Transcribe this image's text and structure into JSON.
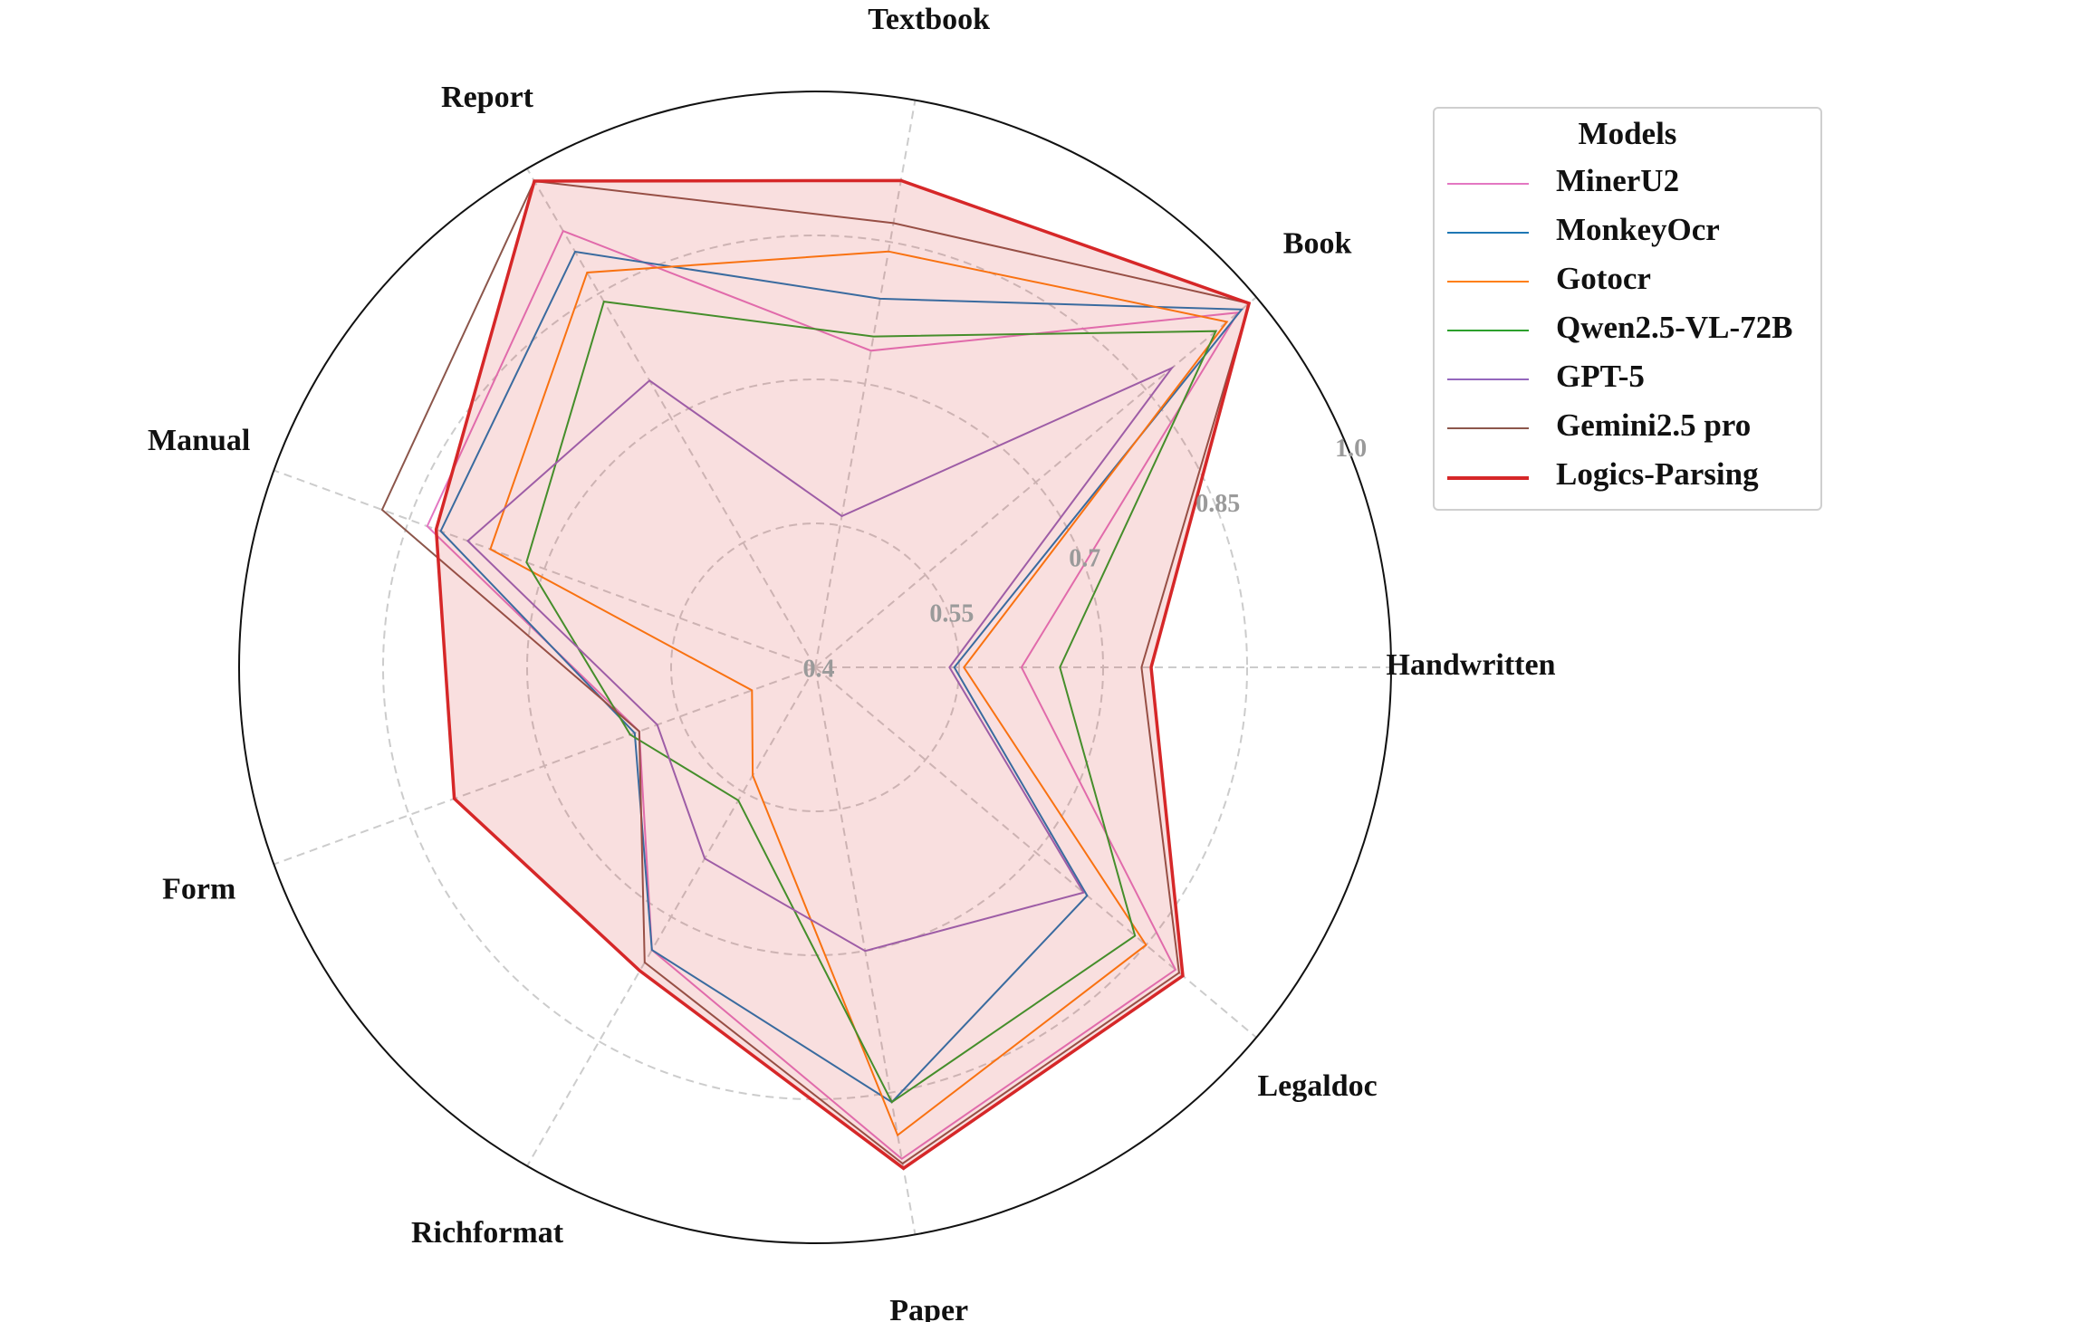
{
  "chart_data": {
    "type": "radar",
    "title": "",
    "axes": [
      "Handwritten",
      "Book",
      "Textbook",
      "Report",
      "Manual",
      "Form",
      "Richformat",
      "Paper",
      "Legaldoc"
    ],
    "rlim": [
      0.4,
      1.0
    ],
    "radial_ticks": [
      0.4,
      0.55,
      0.7,
      0.85,
      1.0
    ],
    "radial_tick_labels": [
      "0.4",
      "0.55",
      "0.7",
      "0.85",
      "1.0"
    ],
    "grid": true,
    "legend": {
      "title": "Models",
      "position": "top-right"
    },
    "series": [
      {
        "name": "MinerU2",
        "color": "#e377c2",
        "width": 2,
        "fill": false,
        "values": [
          0.615,
          0.975,
          0.735,
          0.925,
          0.83,
          0.595,
          0.74,
          0.92,
          0.89
        ]
      },
      {
        "name": "MonkeyOcr",
        "color": "#1f77b4",
        "width": 2,
        "fill": false,
        "values": [
          0.545,
          0.98,
          0.79,
          0.9,
          0.815,
          0.6,
          0.74,
          0.86,
          0.77
        ]
      },
      {
        "name": "Gotocr",
        "color": "#ff7f0e",
        "width": 2,
        "fill": false,
        "values": [
          0.555,
          0.96,
          0.84,
          0.875,
          0.76,
          0.47,
          0.53,
          0.895,
          0.85
        ]
      },
      {
        "name": "Qwen2.5-VL-72B",
        "color": "#2ca02c",
        "width": 2,
        "fill": false,
        "values": [
          0.655,
          0.945,
          0.75,
          0.84,
          0.72,
          0.605,
          0.56,
          0.86,
          0.835
        ]
      },
      {
        "name": "GPT-5",
        "color": "#9467bd",
        "width": 2,
        "fill": false,
        "values": [
          0.54,
          0.885,
          0.56,
          0.745,
          0.785,
          0.575,
          0.63,
          0.7,
          0.765
        ]
      },
      {
        "name": "Gemini2.5 pro",
        "color": "#8c564b",
        "width": 2,
        "fill": false,
        "values": [
          0.74,
          0.99,
          0.87,
          0.985,
          0.88,
          0.595,
          0.755,
          0.925,
          0.895
        ]
      },
      {
        "name": "Logics-Parsing",
        "color": "#d62728",
        "width": 3.5,
        "fill": true,
        "values": [
          0.75,
          0.99,
          0.915,
          0.985,
          0.82,
          0.8,
          0.765,
          0.93,
          0.9
        ]
      }
    ]
  }
}
